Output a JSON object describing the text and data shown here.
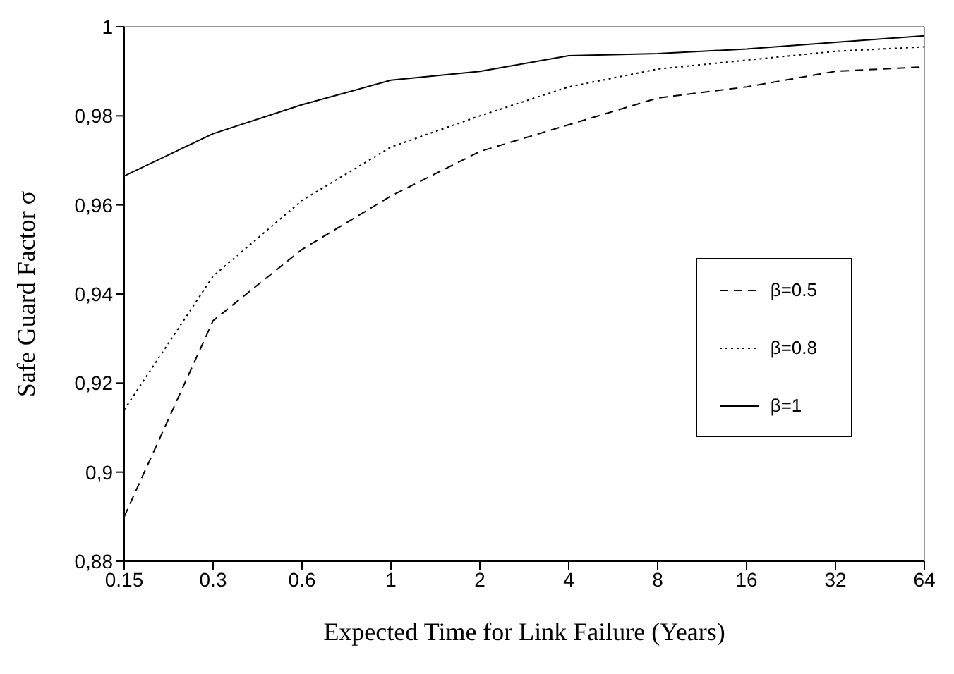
{
  "chart_data": {
    "type": "line",
    "xlabel": "Expected Time for Link Failure (Years)",
    "ylabel": "Safe Guard Factor  σ",
    "categories": [
      "0.15",
      "0.3",
      "0.6",
      "1",
      "2",
      "4",
      "8",
      "16",
      "32",
      "64"
    ],
    "series": [
      {
        "name": "β=0.5",
        "color": "#000000",
        "line_style": "dashed",
        "values": [
          0.89,
          0.934,
          0.95,
          0.962,
          0.972,
          0.978,
          0.984,
          0.9865,
          0.99,
          0.991
        ]
      },
      {
        "name": "β=0.8",
        "color": "#000000",
        "line_style": "dotted",
        "values": [
          0.914,
          0.944,
          0.961,
          0.973,
          0.98,
          0.9865,
          0.9905,
          0.9925,
          0.9945,
          0.9955
        ]
      },
      {
        "name": "β=1",
        "color": "#000000",
        "line_style": "solid",
        "values": [
          0.9665,
          0.976,
          0.9825,
          0.988,
          0.99,
          0.9935,
          0.994,
          0.995,
          0.9965,
          0.998
        ]
      }
    ],
    "ylim": [
      0.88,
      1
    ],
    "yticks": [
      {
        "value": 0.88,
        "label": "0,88"
      },
      {
        "value": 0.9,
        "label": "0,9"
      },
      {
        "value": 0.92,
        "label": "0,92"
      },
      {
        "value": 0.94,
        "label": "0,94"
      },
      {
        "value": 0.96,
        "label": "0,96"
      },
      {
        "value": 0.98,
        "label": "0,98"
      },
      {
        "value": 1,
        "label": "1"
      }
    ],
    "grid": false,
    "legend": "right",
    "marker": "none"
  }
}
